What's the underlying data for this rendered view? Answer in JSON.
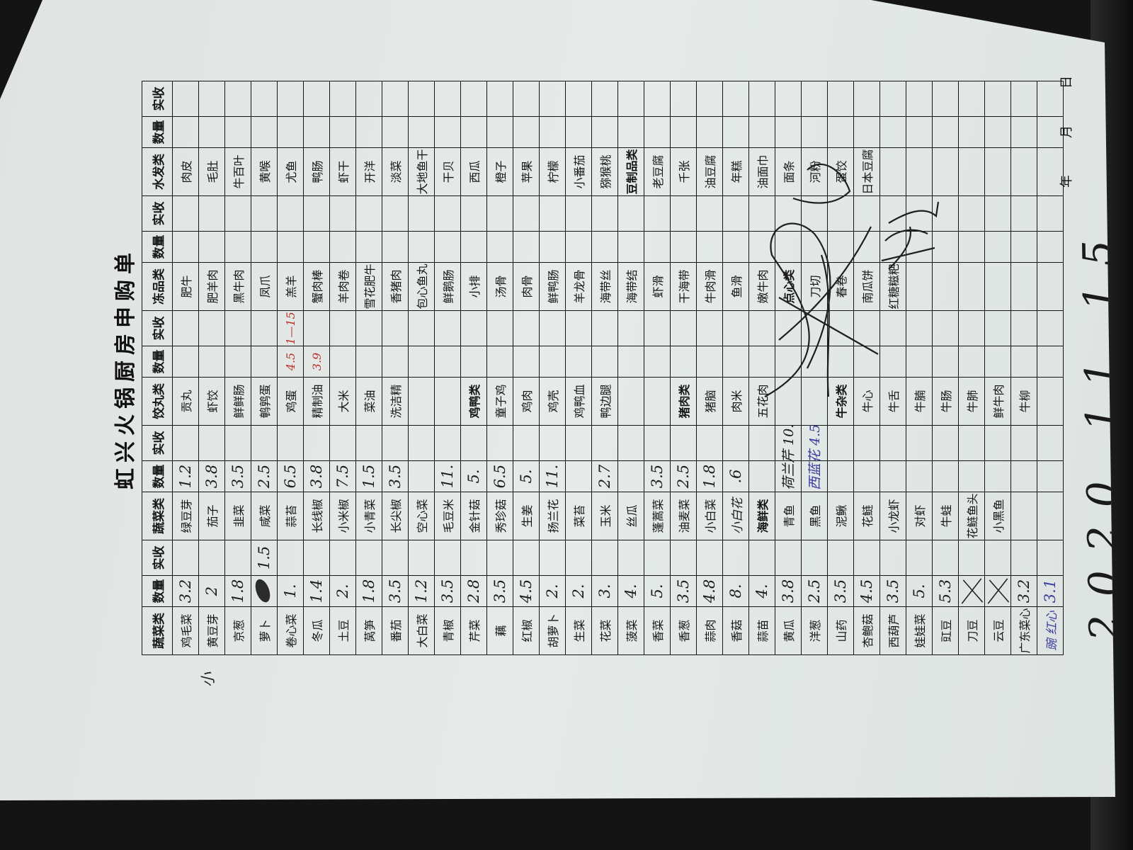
{
  "title": "虹兴火锅厨房申购单",
  "side_mark": "小",
  "headers": [
    "蔬菜类",
    "数量",
    "实收",
    "蔬菜类",
    "数量",
    "实收",
    "饺丸类",
    "数量",
    "实收",
    "冻品类",
    "数量",
    "实收",
    "水发类",
    "数量",
    "实收"
  ],
  "table": {
    "groups": [
      {
        "rows": [
          [
            "鸡毛菜",
            "3.2",
            ""
          ],
          [
            "黄豆芽",
            "2",
            ""
          ],
          [
            "京葱",
            "1.8",
            ""
          ],
          [
            "萝卜",
            "",
            "1.5"
          ],
          [
            "卷心菜",
            "1.",
            ""
          ],
          [
            "冬瓜",
            "1.4",
            ""
          ],
          [
            "土豆",
            "2.",
            ""
          ],
          [
            "莴笋",
            "1.8",
            ""
          ],
          [
            "番茄",
            "3.5",
            ""
          ],
          [
            "大白菜",
            "1.2",
            ""
          ],
          [
            "青椒",
            "3.5",
            ""
          ],
          [
            "芹菜",
            "2.8",
            ""
          ],
          [
            "藕",
            "3.5",
            ""
          ],
          [
            "红椒",
            "4.5",
            ""
          ],
          [
            "胡萝卜",
            "2.",
            ""
          ],
          [
            "生菜",
            "2.",
            ""
          ],
          [
            "花菜",
            "3.",
            ""
          ],
          [
            "菠菜",
            "4.",
            ""
          ],
          [
            "香菜",
            "5.",
            ""
          ],
          [
            "香葱",
            "3.5",
            ""
          ],
          [
            "蒜肉",
            "4.8",
            ""
          ],
          [
            "香菇",
            "8.",
            ""
          ],
          [
            "蒜苗",
            "4.",
            ""
          ],
          [
            "黄瓜",
            "3.8",
            ""
          ],
          [
            "洋葱",
            "2.5",
            ""
          ],
          [
            "山药",
            "3.5",
            ""
          ],
          [
            "杏鲍菇",
            "4.5",
            ""
          ],
          [
            "西葫芦",
            "3.5",
            ""
          ],
          [
            "娃娃菜",
            "5.",
            ""
          ],
          [
            "豇豆",
            "5.3",
            ""
          ],
          [
            "刀豆",
            "",
            ""
          ],
          [
            "云豆",
            "",
            ""
          ],
          [
            "广东菜心",
            "3.2",
            ""
          ],
          [
            "豌 红心",
            "3.1",
            ""
          ]
        ]
      },
      {
        "rows": [
          [
            "绿豆芽",
            "1.2",
            ""
          ],
          [
            "茄子",
            "3.8",
            ""
          ],
          [
            "韭菜",
            "3.5",
            ""
          ],
          [
            "咸菜",
            "2.5",
            ""
          ],
          [
            "蒜苔",
            "6.5",
            ""
          ],
          [
            "长线椒",
            "3.8",
            ""
          ],
          [
            "小米椒",
            "7.5",
            ""
          ],
          [
            "小青菜",
            "1.5",
            ""
          ],
          [
            "长尖椒",
            "3.5",
            ""
          ],
          [
            "空心菜",
            "",
            ""
          ],
          [
            "毛豆米",
            "11.",
            ""
          ],
          [
            "金针菇",
            "5.",
            ""
          ],
          [
            "秀珍菇",
            "6.5",
            ""
          ],
          [
            "生姜",
            "5.",
            ""
          ],
          [
            "扬兰花",
            "11.",
            ""
          ],
          [
            "菜苔",
            "",
            ""
          ],
          [
            "玉米",
            "2.7",
            ""
          ],
          [
            "丝瓜",
            "",
            ""
          ],
          [
            "蓬蒿菜",
            "3.5",
            ""
          ],
          [
            "油麦菜",
            "2.5",
            ""
          ],
          [
            "小白菜",
            "1.8",
            ""
          ],
          [
            "小白花",
            ".6",
            ""
          ],
          [
            "海鲜类",
            "",
            ""
          ],
          [
            "青鱼",
            "荷兰芹 10.",
            ""
          ],
          [
            "黑鱼",
            "西蓝花 4.5",
            ""
          ],
          [
            "泥鳅",
            "",
            ""
          ],
          [
            "花鲢",
            "",
            ""
          ],
          [
            "小龙虾",
            "",
            ""
          ],
          [
            "对虾",
            "",
            ""
          ],
          [
            "牛蛙",
            "",
            ""
          ],
          [
            "花鲢鱼头",
            "",
            ""
          ],
          [
            "小黑鱼",
            "",
            ""
          ],
          [
            "",
            "",
            ""
          ],
          [
            "",
            "",
            ""
          ]
        ]
      },
      {
        "rows": [
          [
            "贡丸",
            "",
            ""
          ],
          [
            "虾饺",
            "",
            ""
          ],
          [
            "鲜鲜肠",
            "",
            ""
          ],
          [
            "鹌鹑蛋",
            "",
            ""
          ],
          [
            "鸡蛋",
            "4.5",
            "1—15"
          ],
          [
            "精制油",
            "3.9",
            ""
          ],
          [
            "大米",
            "",
            ""
          ],
          [
            "菜油",
            "",
            ""
          ],
          [
            "洗洁精",
            "",
            ""
          ],
          [
            "",
            "",
            ""
          ],
          [
            "",
            "",
            ""
          ],
          [
            "鸡鸭类",
            "",
            ""
          ],
          [
            "童子鸡",
            "",
            ""
          ],
          [
            "鸡肉",
            "",
            ""
          ],
          [
            "鸡壳",
            "",
            ""
          ],
          [
            "鸡鸭血",
            "",
            ""
          ],
          [
            "鸭边腿",
            "",
            ""
          ],
          [
            "",
            "",
            ""
          ],
          [
            "",
            "",
            ""
          ],
          [
            "猪肉类",
            "",
            ""
          ],
          [
            "猪脑",
            "",
            ""
          ],
          [
            "肉米",
            "",
            ""
          ],
          [
            "五花肉",
            "",
            ""
          ],
          [
            "",
            "",
            ""
          ],
          [
            "",
            "",
            ""
          ],
          [
            "牛杂类",
            "",
            ""
          ],
          [
            "牛心",
            "",
            ""
          ],
          [
            "牛舌",
            "",
            ""
          ],
          [
            "牛腩",
            "",
            ""
          ],
          [
            "牛肠",
            "",
            ""
          ],
          [
            "牛肺",
            "",
            ""
          ],
          [
            "鲜牛肉",
            "",
            ""
          ],
          [
            "牛柳",
            "",
            ""
          ],
          [
            "",
            "",
            ""
          ]
        ]
      },
      {
        "rows": [
          [
            "肥牛",
            "",
            ""
          ],
          [
            "肥羊肉",
            "",
            ""
          ],
          [
            "黑牛肉",
            "",
            ""
          ],
          [
            "凤爪",
            "",
            ""
          ],
          [
            "羔羊",
            "",
            ""
          ],
          [
            "蟹肉棒",
            "",
            ""
          ],
          [
            "羊肉卷",
            "",
            ""
          ],
          [
            "雪花肥牛",
            "",
            ""
          ],
          [
            "香猪肉",
            "",
            ""
          ],
          [
            "包心鱼丸",
            "",
            ""
          ],
          [
            "鲜鹅肠",
            "",
            ""
          ],
          [
            "小排",
            "",
            ""
          ],
          [
            "汤骨",
            "",
            ""
          ],
          [
            "肉骨",
            "",
            ""
          ],
          [
            "鲜鸭肠",
            "",
            ""
          ],
          [
            "羊龙骨",
            "",
            ""
          ],
          [
            "海带丝",
            "",
            ""
          ],
          [
            "海带结",
            "",
            ""
          ],
          [
            "虾滑",
            "",
            ""
          ],
          [
            "干海带",
            "",
            ""
          ],
          [
            "牛肉滑",
            "",
            ""
          ],
          [
            "鱼滑",
            "",
            ""
          ],
          [
            "嫩牛肉",
            "",
            ""
          ],
          [
            "点心类",
            "",
            ""
          ],
          [
            "刀切",
            "",
            ""
          ],
          [
            "春卷",
            "",
            ""
          ],
          [
            "南瓜饼",
            "",
            ""
          ],
          [
            "红糖糍粑",
            "",
            ""
          ],
          [
            "",
            "",
            ""
          ],
          [
            "",
            "",
            ""
          ],
          [
            "",
            "",
            ""
          ],
          [
            "",
            "",
            ""
          ],
          [
            "",
            "",
            ""
          ],
          [
            "",
            "",
            ""
          ]
        ]
      },
      {
        "rows": [
          [
            "肉皮",
            "",
            ""
          ],
          [
            "毛肚",
            "",
            ""
          ],
          [
            "牛百叶",
            "",
            ""
          ],
          [
            "黄喉",
            "",
            ""
          ],
          [
            "尤鱼",
            "",
            ""
          ],
          [
            "鸭肠",
            "",
            ""
          ],
          [
            "虾干",
            "",
            ""
          ],
          [
            "开洋",
            "",
            ""
          ],
          [
            "淡菜",
            "",
            ""
          ],
          [
            "大地鱼干",
            "",
            ""
          ],
          [
            "干贝",
            "",
            ""
          ],
          [
            "西瓜",
            "",
            ""
          ],
          [
            "橙子",
            "",
            ""
          ],
          [
            "苹果",
            "",
            ""
          ],
          [
            "柠檬",
            "",
            ""
          ],
          [
            "小番茄",
            "",
            ""
          ],
          [
            "猕猴桃",
            "",
            ""
          ],
          [
            "豆制品类",
            "",
            ""
          ],
          [
            "老豆腐",
            "",
            ""
          ],
          [
            "千张",
            "",
            ""
          ],
          [
            "油豆腐",
            "",
            ""
          ],
          [
            "年糕",
            "",
            ""
          ],
          [
            "油面巾",
            "",
            ""
          ],
          [
            "面条",
            "",
            ""
          ],
          [
            "河粉",
            "",
            ""
          ],
          [
            "蛋饺",
            "",
            ""
          ],
          [
            "日本豆腐",
            "",
            ""
          ],
          [
            "",
            "",
            ""
          ],
          [
            "",
            "",
            ""
          ],
          [
            "",
            "",
            ""
          ],
          [
            "",
            "",
            ""
          ],
          [
            "",
            "",
            ""
          ],
          [
            "",
            "",
            ""
          ],
          [
            "",
            "",
            ""
          ]
        ]
      }
    ]
  },
  "handwritten_names": [
    [
      1,
      21
    ],
    [
      0,
      33
    ]
  ],
  "blotted_cells": [
    [
      0,
      3
    ]
  ],
  "crossed_out_rows": [
    [
      0,
      30
    ],
    [
      0,
      31
    ]
  ],
  "ink_colors": {
    "black": "#1c1c1c",
    "red": "#b8322a",
    "purple": "#3b3c9e"
  },
  "ink_cells": [
    {
      "group": 2,
      "row": 4,
      "field": 1,
      "ink": "red"
    },
    {
      "group": 2,
      "row": 4,
      "field": 2,
      "ink": "red"
    },
    {
      "group": 2,
      "row": 5,
      "field": 1,
      "ink": "red"
    },
    {
      "group": 1,
      "row": 24,
      "field": 1,
      "ink": "purple"
    },
    {
      "group": 0,
      "row": 33,
      "field": 0,
      "ink": "purple"
    },
    {
      "group": 0,
      "row": 33,
      "field": 1,
      "ink": "purple"
    }
  ],
  "footer": {
    "year_label": "年",
    "month_label": "月",
    "day_label": "日"
  },
  "handwritten_date": "2020.11.15"
}
